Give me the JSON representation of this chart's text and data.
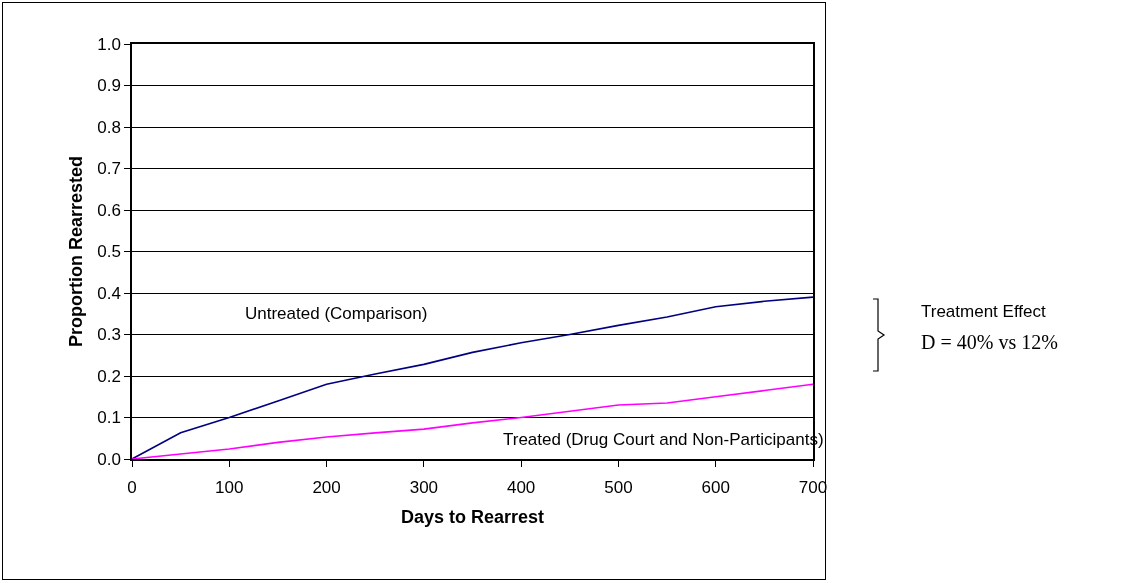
{
  "chart_data": {
    "type": "line",
    "xlabel": "Days to Rearrest",
    "ylabel": "Proportion Rearrested",
    "x": [
      0,
      50,
      100,
      150,
      200,
      250,
      300,
      350,
      400,
      450,
      500,
      550,
      600,
      650,
      700
    ],
    "series": [
      {
        "color": "#000080",
        "values": [
          0,
          0.063,
          0.1,
          0.14,
          0.18,
          0.205,
          0.228,
          0.257,
          0.28,
          0.3,
          0.322,
          0.342,
          0.367,
          0.38,
          0.39
        ]
      },
      {
        "color": "#ff00ff",
        "values": [
          0,
          0.012,
          0.024,
          0.04,
          0.053,
          0.063,
          0.072,
          0.087,
          0.1,
          0.115,
          0.13,
          0.135,
          0.15,
          0.165,
          0.18
        ]
      }
    ],
    "xlim": [
      0,
      700
    ],
    "xticks": [
      0,
      100,
      200,
      300,
      400,
      500,
      600,
      700
    ],
    "ylim": [
      0,
      1
    ],
    "yticks": [
      {
        "value": 0,
        "label": "0.0"
      },
      0.1,
      0.2,
      0.3,
      0.4,
      0.5,
      0.6,
      0.7,
      0.8,
      0.9,
      {
        "value": 1,
        "label": "1.0"
      }
    ],
    "grid": "y",
    "marker": "none",
    "line_style": "solid",
    "annotations": [
      "Untreated (Comparison)",
      "Treated (Drug Court and Non-Participants)",
      "Treatment Effect",
      "D = 40% vs 12%"
    ]
  }
}
